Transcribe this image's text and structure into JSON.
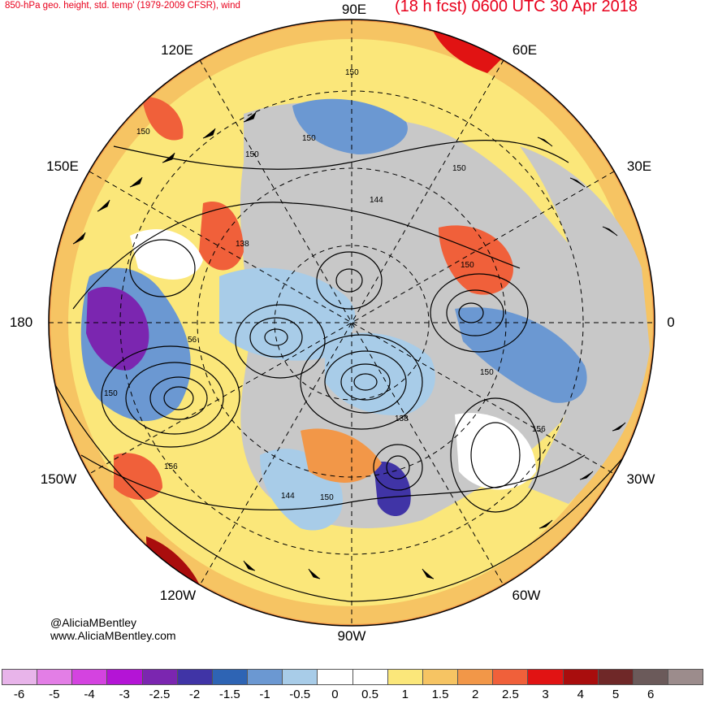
{
  "header": {
    "left_title": "850-hPa geo. height, std. temp' (1979-2009 CFSR), wind",
    "right_title": "(18 h fcst) 0600 UTC 30 Apr 2018"
  },
  "map": {
    "projection": "north polar stereographic",
    "longitude_labels": [
      "90E",
      "60E",
      "30E",
      "0",
      "30W",
      "60W",
      "90W",
      "120W",
      "150W",
      "180",
      "150E",
      "120E"
    ],
    "contour_labels": [
      "150",
      "150",
      "150",
      "150",
      "144",
      "138",
      "150",
      "56",
      "150",
      "150",
      "138",
      "156",
      "156",
      "144",
      "150",
      "150"
    ],
    "colors": {
      "ocean_land_missing": "#c8c8c8",
      "contour": "#000000",
      "grid": "#000000"
    }
  },
  "credits": {
    "handle": "@AliciaMBentley",
    "website": "www.AliciaMBentley.com"
  },
  "colorbar": {
    "tick_labels": [
      "-6",
      "-5",
      "-4",
      "-3",
      "-2.5",
      "-2",
      "-1.5",
      "-1",
      "-0.5",
      "0",
      "0.5",
      "1",
      "1.5",
      "2",
      "2.5",
      "3",
      "4",
      "5",
      "6"
    ],
    "colors": [
      "#e8b4ea",
      "#e37ee6",
      "#d443e0",
      "#b414d6",
      "#7b26b0",
      "#4034a6",
      "#2e64b4",
      "#6b98d2",
      "#a8cce8",
      "#ffffff",
      "#ffffff",
      "#fbe77a",
      "#f6c463",
      "#f29748",
      "#f0603a",
      "#e11313",
      "#a90d0d",
      "#6f2828",
      "#6b5a5a",
      "#9c8c8c"
    ]
  }
}
